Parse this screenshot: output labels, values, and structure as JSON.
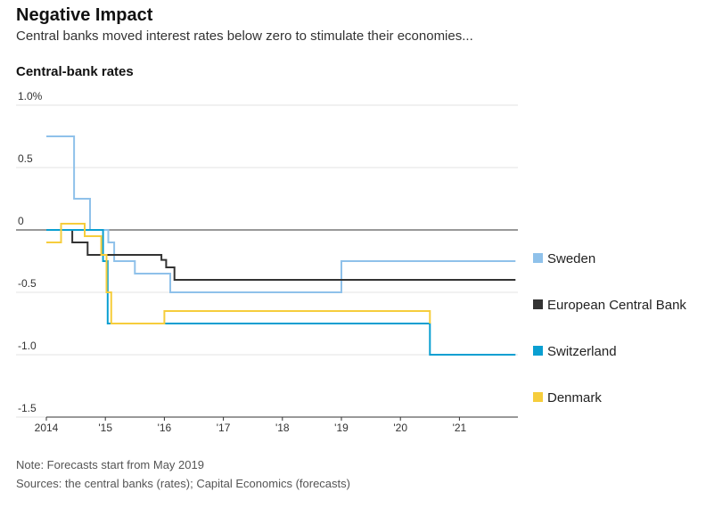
{
  "header": {
    "title": "Negative Impact",
    "subtitle": "Central banks moved interest rates below zero to stimulate their economies..."
  },
  "footer": {
    "note": "Note: Forecasts start from May 2019",
    "source": "Sources: the central banks (rates); Capital Economics (forecasts)"
  },
  "chart_data": {
    "type": "line",
    "title": "Central-bank rates",
    "xlabel": "",
    "ylabel": "",
    "xlim": [
      2014,
      2022
    ],
    "ylim": [
      -1.5,
      1.0
    ],
    "x_ticks": [
      {
        "value": 2014,
        "label": "2014"
      },
      {
        "value": 2015,
        "label": "'15"
      },
      {
        "value": 2016,
        "label": "'16"
      },
      {
        "value": 2017,
        "label": "'17"
      },
      {
        "value": 2018,
        "label": "'18"
      },
      {
        "value": 2019,
        "label": "'19"
      },
      {
        "value": 2020,
        "label": "'20"
      },
      {
        "value": 2021,
        "label": "'21"
      }
    ],
    "y_ticks": [
      {
        "value": 1.0,
        "label": "1.0%"
      },
      {
        "value": 0.5,
        "label": "0.5"
      },
      {
        "value": 0,
        "label": "0"
      },
      {
        "value": -0.5,
        "label": "-0.5"
      },
      {
        "value": -1.0,
        "label": "-1.0"
      },
      {
        "value": -1.5,
        "label": "-1.5"
      }
    ],
    "grid": true,
    "legend": "right",
    "series": [
      {
        "name": "Sweden",
        "color": "#8fc1ea",
        "points": [
          [
            2014,
            0.75
          ],
          [
            2014.47,
            0.75
          ],
          [
            2014.47,
            0.25
          ],
          [
            2014.74,
            0.25
          ],
          [
            2014.74,
            0.0
          ],
          [
            2015.05,
            0.0
          ],
          [
            2015.05,
            -0.1
          ],
          [
            2015.15,
            -0.1
          ],
          [
            2015.15,
            -0.25
          ],
          [
            2015.5,
            -0.25
          ],
          [
            2015.5,
            -0.35
          ],
          [
            2016.1,
            -0.35
          ],
          [
            2016.1,
            -0.5
          ],
          [
            2019.0,
            -0.5
          ],
          [
            2019.0,
            -0.25
          ],
          [
            2021.95,
            -0.25
          ]
        ]
      },
      {
        "name": "European Central Bank",
        "color": "#333333",
        "points": [
          [
            2014,
            0.0
          ],
          [
            2014.44,
            0.0
          ],
          [
            2014.44,
            -0.1
          ],
          [
            2014.7,
            -0.1
          ],
          [
            2014.7,
            -0.2
          ],
          [
            2015.95,
            -0.2
          ],
          [
            2015.95,
            -0.24
          ],
          [
            2016.03,
            -0.24
          ],
          [
            2016.03,
            -0.3
          ],
          [
            2016.17,
            -0.3
          ],
          [
            2016.17,
            -0.4
          ],
          [
            2021.95,
            -0.4
          ]
        ]
      },
      {
        "name": "Switzerland",
        "color": "#0a9fd1",
        "points": [
          [
            2014,
            0.0
          ],
          [
            2014.96,
            0.0
          ],
          [
            2014.96,
            -0.25
          ],
          [
            2015.04,
            -0.25
          ],
          [
            2015.04,
            -0.75
          ],
          [
            2020.5,
            -0.75
          ],
          [
            2020.5,
            -1.0
          ],
          [
            2021.95,
            -1.0
          ]
        ]
      },
      {
        "name": "Denmark",
        "color": "#f6cd3c",
        "points": [
          [
            2014,
            -0.1
          ],
          [
            2014.25,
            -0.1
          ],
          [
            2014.25,
            0.05
          ],
          [
            2014.65,
            0.05
          ],
          [
            2014.65,
            -0.05
          ],
          [
            2014.93,
            -0.05
          ],
          [
            2014.93,
            -0.2
          ],
          [
            2015.02,
            -0.2
          ],
          [
            2015.02,
            -0.5
          ],
          [
            2015.1,
            -0.5
          ],
          [
            2015.1,
            -0.75
          ],
          [
            2016.0,
            -0.75
          ],
          [
            2016.0,
            -0.65
          ],
          [
            2020.5,
            -0.65
          ],
          [
            2020.5,
            -0.75
          ]
        ]
      }
    ]
  }
}
